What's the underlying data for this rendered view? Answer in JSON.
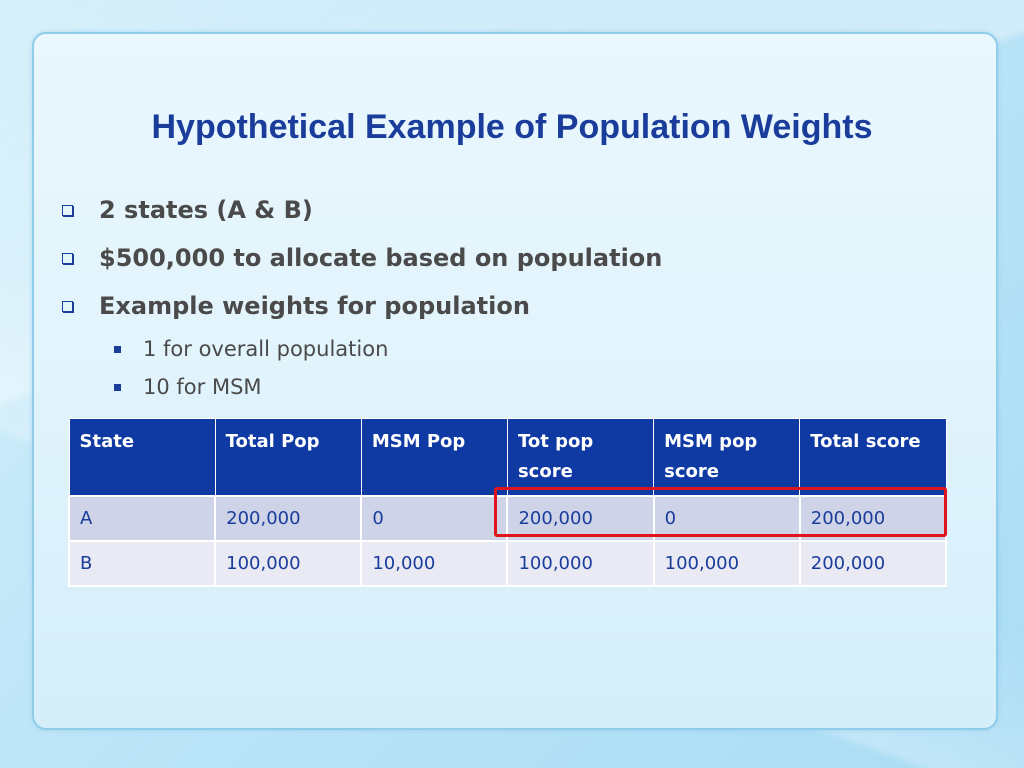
{
  "slide": {
    "title": "Hypothetical Example of Population Weights",
    "bullets": [
      "2 states (A & B)",
      "$500,000 to allocate based on population",
      "Example weights for population"
    ],
    "sub_bullets": [
      "1 for overall population",
      "10 for MSM"
    ]
  },
  "table": {
    "headers": [
      "State",
      "Total Pop",
      "MSM Pop",
      "Tot pop score",
      "MSM pop score",
      "Total score"
    ],
    "rows": [
      [
        "A",
        "200,000",
        "0",
        "200,000",
        "0",
        "200,000"
      ],
      [
        "B",
        "100,000",
        "10,000",
        "100,000",
        "100,000",
        "200,000"
      ]
    ]
  },
  "colors": {
    "title": "#1a3d9c",
    "header_bg": "#0f3aa3",
    "highlight_border": "#e0141b"
  }
}
